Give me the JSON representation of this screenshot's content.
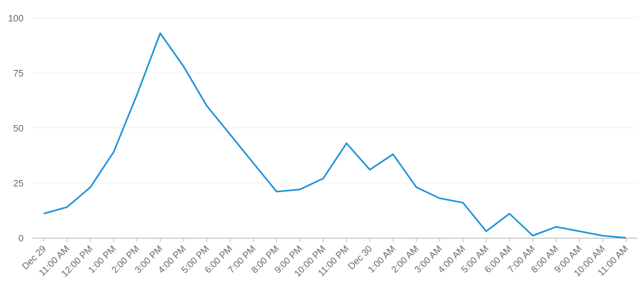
{
  "chart_data": {
    "type": "line",
    "categories": [
      "Dec 29",
      "11:00 AM",
      "12:00 PM",
      "1:00 PM",
      "2:00 PM",
      "3:00 PM",
      "4:00 PM",
      "5:00 PM",
      "6:00 PM",
      "7:00 PM",
      "8:00 PM",
      "9:00 PM",
      "10:00 PM",
      "11:00 PM",
      "Dec 30",
      "1:00 AM",
      "2:00 AM",
      "3:00 AM",
      "4:00 AM",
      "5:00 AM",
      "6:00 AM",
      "7:00 AM",
      "8:00 AM",
      "9:00 AM",
      "10:00 AM",
      "11:00 AM"
    ],
    "values": [
      11,
      14,
      23,
      39,
      65,
      93,
      78,
      60,
      47,
      34,
      21,
      22,
      27,
      43,
      31,
      38,
      23,
      18,
      16,
      3,
      11,
      1,
      5,
      3,
      1,
      0
    ],
    "color": "#1a90d9",
    "ylim": [
      0,
      100
    ],
    "yticks": [
      0,
      25,
      50,
      75,
      100
    ],
    "grid": true
  }
}
